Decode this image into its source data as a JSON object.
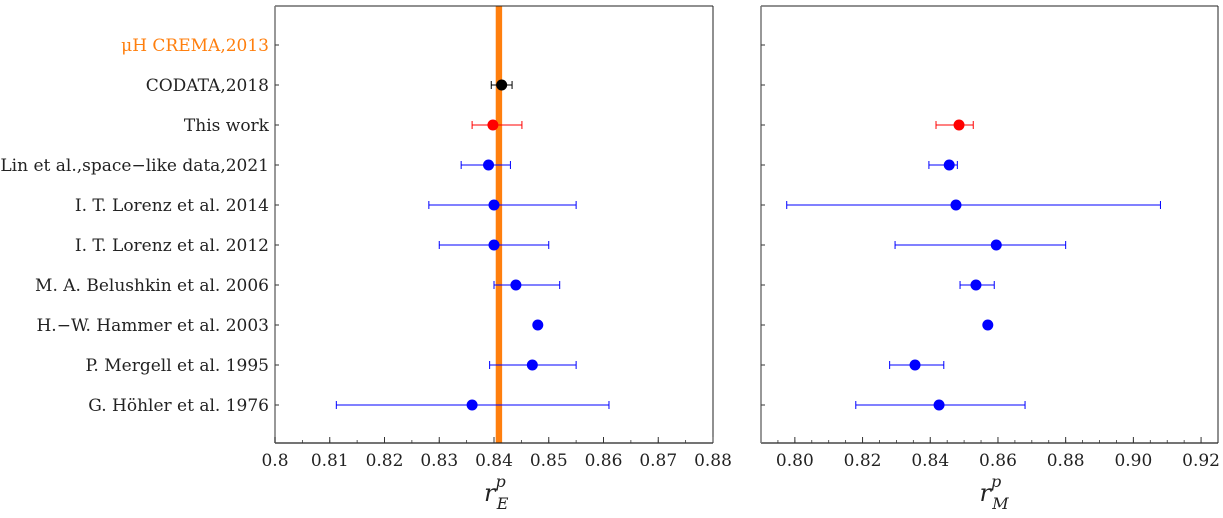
{
  "chart_data": [
    {
      "type": "scatter",
      "subtype": "forest-plot-with-error-bars",
      "xlabel": "r_E^p",
      "xlabel_main": "r",
      "xlabel_sup": "p",
      "xlabel_sub": "E",
      "xlim": [
        0.8,
        0.88
      ],
      "xticks": [
        "0.8",
        "0.81",
        "0.82",
        "0.83",
        "0.84",
        "0.85",
        "0.86",
        "0.87",
        "0.88"
      ],
      "xtick_values": [
        0.8,
        0.81,
        0.82,
        0.83,
        0.84,
        0.85,
        0.86,
        0.87,
        0.88
      ],
      "band": {
        "label": "μH CREMA,2013",
        "center": 0.8409,
        "halfwidth": 0.0004,
        "color": "#ff7f0e"
      },
      "categories": [
        "μH CREMA,2013",
        "CODATA,2018",
        "This work",
        "Lin et al.,space−like data,2021",
        "I. T. Lorenz et al. 2014",
        "I. T. Lorenz et al. 2012",
        "M. A. Belushkin et al. 2006",
        "H.−W. Hammer et al. 2003",
        "P. Mergell et al. 1995",
        "G. Höhler et al. 1976"
      ],
      "points": [
        null,
        {
          "value": 0.8414,
          "low": 0.8395,
          "high": 0.8433,
          "color": "#000000"
        },
        {
          "value": 0.8398,
          "low": 0.836,
          "high": 0.8451,
          "color": "#ff0000"
        },
        {
          "value": 0.839,
          "low": 0.834,
          "high": 0.843,
          "color": "#0000ff"
        },
        {
          "value": 0.84,
          "low": 0.8281,
          "high": 0.855,
          "color": "#0000ff"
        },
        {
          "value": 0.84,
          "low": 0.83,
          "high": 0.85,
          "color": "#0000ff"
        },
        {
          "value": 0.844,
          "low": 0.84,
          "high": 0.852,
          "color": "#0000ff"
        },
        {
          "value": 0.848,
          "low": null,
          "high": null,
          "color": "#0000ff"
        },
        {
          "value": 0.847,
          "low": 0.8392,
          "high": 0.855,
          "color": "#0000ff"
        },
        {
          "value": 0.836,
          "low": 0.8112,
          "high": 0.861,
          "color": "#0000ff"
        }
      ]
    },
    {
      "type": "scatter",
      "subtype": "forest-plot-with-error-bars",
      "xlabel": "r_M^p",
      "xlabel_main": "r",
      "xlabel_sup": "p",
      "xlabel_sub": "M",
      "xlim": [
        0.79,
        0.925
      ],
      "xticks": [
        "0.80",
        "0.82",
        "0.84",
        "0.86",
        "0.88",
        "0.90",
        "0.92"
      ],
      "xtick_values": [
        0.8,
        0.82,
        0.84,
        0.86,
        0.88,
        0.9,
        0.92
      ],
      "points": [
        null,
        null,
        {
          "value": 0.8485,
          "low": 0.8417,
          "high": 0.8527,
          "color": "#ff0000"
        },
        {
          "value": 0.8456,
          "low": 0.8396,
          "high": 0.848,
          "color": "#0000ff"
        },
        {
          "value": 0.8476,
          "low": 0.7976,
          "high": 0.908,
          "color": "#0000ff"
        },
        {
          "value": 0.8595,
          "low": 0.8296,
          "high": 0.88,
          "color": "#0000ff"
        },
        {
          "value": 0.8535,
          "low": 0.8488,
          "high": 0.8589,
          "color": "#0000ff"
        },
        {
          "value": 0.857,
          "low": null,
          "high": null,
          "color": "#0000ff"
        },
        {
          "value": 0.8355,
          "low": 0.828,
          "high": 0.844,
          "color": "#0000ff"
        },
        {
          "value": 0.8426,
          "low": 0.818,
          "high": 0.868,
          "color": "#0000ff"
        }
      ]
    }
  ]
}
